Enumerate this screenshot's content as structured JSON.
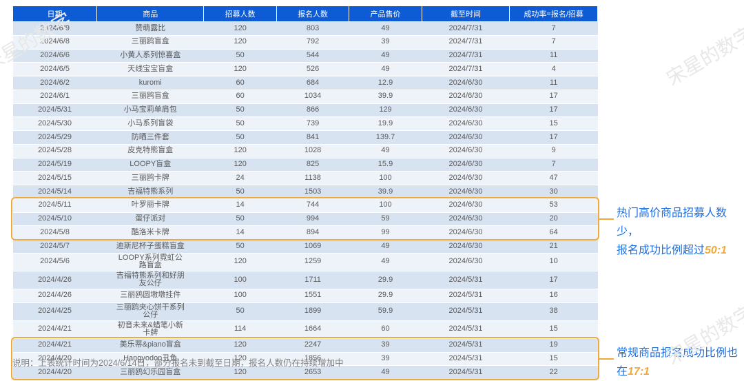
{
  "headers": {
    "date": "日期",
    "product": "商品",
    "recruit": "招募人数",
    "signup": "报名人数",
    "price": "产品售价",
    "deadline": "截至时间",
    "rate": "成功率=报名/招募"
  },
  "rows": [
    {
      "date": "2024/6/9",
      "product": "赞萌露比",
      "recruit": "120",
      "signup": "803",
      "price": "49",
      "deadline": "2024/7/31",
      "rate": "7"
    },
    {
      "date": "2024/6/8",
      "product": "三丽鸥盲盒",
      "recruit": "120",
      "signup": "792",
      "price": "39",
      "deadline": "2024/7/31",
      "rate": "7"
    },
    {
      "date": "2024/6/6",
      "product": "小黄人系列惊喜盒",
      "recruit": "50",
      "signup": "544",
      "price": "49",
      "deadline": "2024/7/31",
      "rate": "11"
    },
    {
      "date": "2024/6/5",
      "product": "天线宝宝盲盒",
      "recruit": "120",
      "signup": "526",
      "price": "49",
      "deadline": "2024/7/31",
      "rate": "4"
    },
    {
      "date": "2024/6/2",
      "product": "kuromi",
      "recruit": "60",
      "signup": "684",
      "price": "12.9",
      "deadline": "2024/6/30",
      "rate": "11"
    },
    {
      "date": "2024/6/1",
      "product": "三丽鸥盲盒",
      "recruit": "60",
      "signup": "1034",
      "price": "39.9",
      "deadline": "2024/6/30",
      "rate": "17"
    },
    {
      "date": "2024/5/31",
      "product": "小马宝莉单肩包",
      "recruit": "50",
      "signup": "866",
      "price": "129",
      "deadline": "2024/6/30",
      "rate": "17"
    },
    {
      "date": "2024/5/30",
      "product": "小马系列盲袋",
      "recruit": "50",
      "signup": "739",
      "price": "19.9",
      "deadline": "2024/6/30",
      "rate": "15"
    },
    {
      "date": "2024/5/29",
      "product": "防晒三件套",
      "recruit": "50",
      "signup": "841",
      "price": "139.7",
      "deadline": "2024/6/30",
      "rate": "17"
    },
    {
      "date": "2024/5/28",
      "product": "皮克特熊盲盒",
      "recruit": "120",
      "signup": "1028",
      "price": "49",
      "deadline": "2024/6/30",
      "rate": "9"
    },
    {
      "date": "2024/5/19",
      "product": "LOOPY盲盒",
      "recruit": "120",
      "signup": "825",
      "price": "15.9",
      "deadline": "2024/6/30",
      "rate": "7"
    },
    {
      "date": "2024/5/15",
      "product": "三丽鸥卡牌",
      "recruit": "24",
      "signup": "1138",
      "price": "100",
      "deadline": "2024/6/30",
      "rate": "47"
    },
    {
      "date": "2024/5/14",
      "product": "吉福特熊系列",
      "recruit": "50",
      "signup": "1503",
      "price": "39.9",
      "deadline": "2024/6/30",
      "rate": "30"
    },
    {
      "date": "2024/5/11",
      "product": "叶罗丽卡牌",
      "recruit": "14",
      "signup": "744",
      "price": "100",
      "deadline": "2024/6/30",
      "rate": "53"
    },
    {
      "date": "2024/5/10",
      "product": "蛋仔派对",
      "recruit": "50",
      "signup": "994",
      "price": "59",
      "deadline": "2024/6/30",
      "rate": "20"
    },
    {
      "date": "2024/5/8",
      "product": "酷洛米卡牌",
      "recruit": "14",
      "signup": "894",
      "price": "99",
      "deadline": "2024/6/30",
      "rate": "64"
    },
    {
      "date": "2024/5/7",
      "product": "迪斯尼杯子蛋糕盲盒",
      "recruit": "50",
      "signup": "1069",
      "price": "49",
      "deadline": "2024/6/30",
      "rate": "21"
    },
    {
      "date": "2024/5/6",
      "product": "LOOPY系列霓虹公\n路盲盒",
      "recruit": "120",
      "signup": "1259",
      "price": "49",
      "deadline": "2024/6/30",
      "rate": "10",
      "multi": true
    },
    {
      "date": "2024/4/26",
      "product": "吉福特熊系列和好朋\n友公仔",
      "recruit": "100",
      "signup": "1711",
      "price": "29.9",
      "deadline": "2024/5/31",
      "rate": "17",
      "multi": true
    },
    {
      "date": "2024/4/26",
      "product": "三丽鸥圆墩墩挂件",
      "recruit": "100",
      "signup": "1551",
      "price": "29.9",
      "deadline": "2024/5/31",
      "rate": "16"
    },
    {
      "date": "2024/4/25",
      "product": "三丽鸥夹心饼干系列\n公仔",
      "recruit": "50",
      "signup": "1899",
      "price": "59.9",
      "deadline": "2024/5/31",
      "rate": "38",
      "multi": true
    },
    {
      "date": "2024/4/21",
      "product": "初音未来&蜡笔小新\n卡牌",
      "recruit": "114",
      "signup": "1664",
      "price": "60",
      "deadline": "2024/5/31",
      "rate": "15",
      "multi": true
    },
    {
      "date": "2024/4/21",
      "product": "美乐蒂&piano盲盒",
      "recruit": "120",
      "signup": "2247",
      "price": "39",
      "deadline": "2024/5/31",
      "rate": "19"
    },
    {
      "date": "2024/4/20",
      "product": "Hangyodon丑鱼",
      "recruit": "120",
      "signup": "1856",
      "price": "39",
      "deadline": "2024/5/31",
      "rate": "15"
    },
    {
      "date": "2024/4/20",
      "product": "三丽鸥幻乐园盲盒",
      "recruit": "120",
      "signup": "2653",
      "price": "49",
      "deadline": "2024/5/31",
      "rate": "22"
    }
  ],
  "annot1": {
    "line1": "热门高价商品招募人数少，",
    "line2_prefix": "报名成功比例超过",
    "ratio": "50:1"
  },
  "annot2": {
    "line1": "常规商品报名成功比例也",
    "line2_prefix": "在",
    "ratio": "17:1"
  },
  "footnote": "说明：上表统计时间为2024/6/14日，部分报名未到截至日期，报名人数仍在持续增加中",
  "watermark": "宋星的数字",
  "style": {
    "header_bg": "#0e5bd6",
    "header_fg": "#ffffff",
    "row_even_bg": "#d8e3f2",
    "row_odd_bg": "#eef3fa",
    "cell_fg": "#595959",
    "highlight_border": "#f2a93b",
    "annot_color": "#1f6fe0",
    "ratio_color": "#f2a93b",
    "footnote_color": "#808080",
    "font_size_table": 11,
    "font_size_annot": 16,
    "font_size_footnote": 12.5
  }
}
